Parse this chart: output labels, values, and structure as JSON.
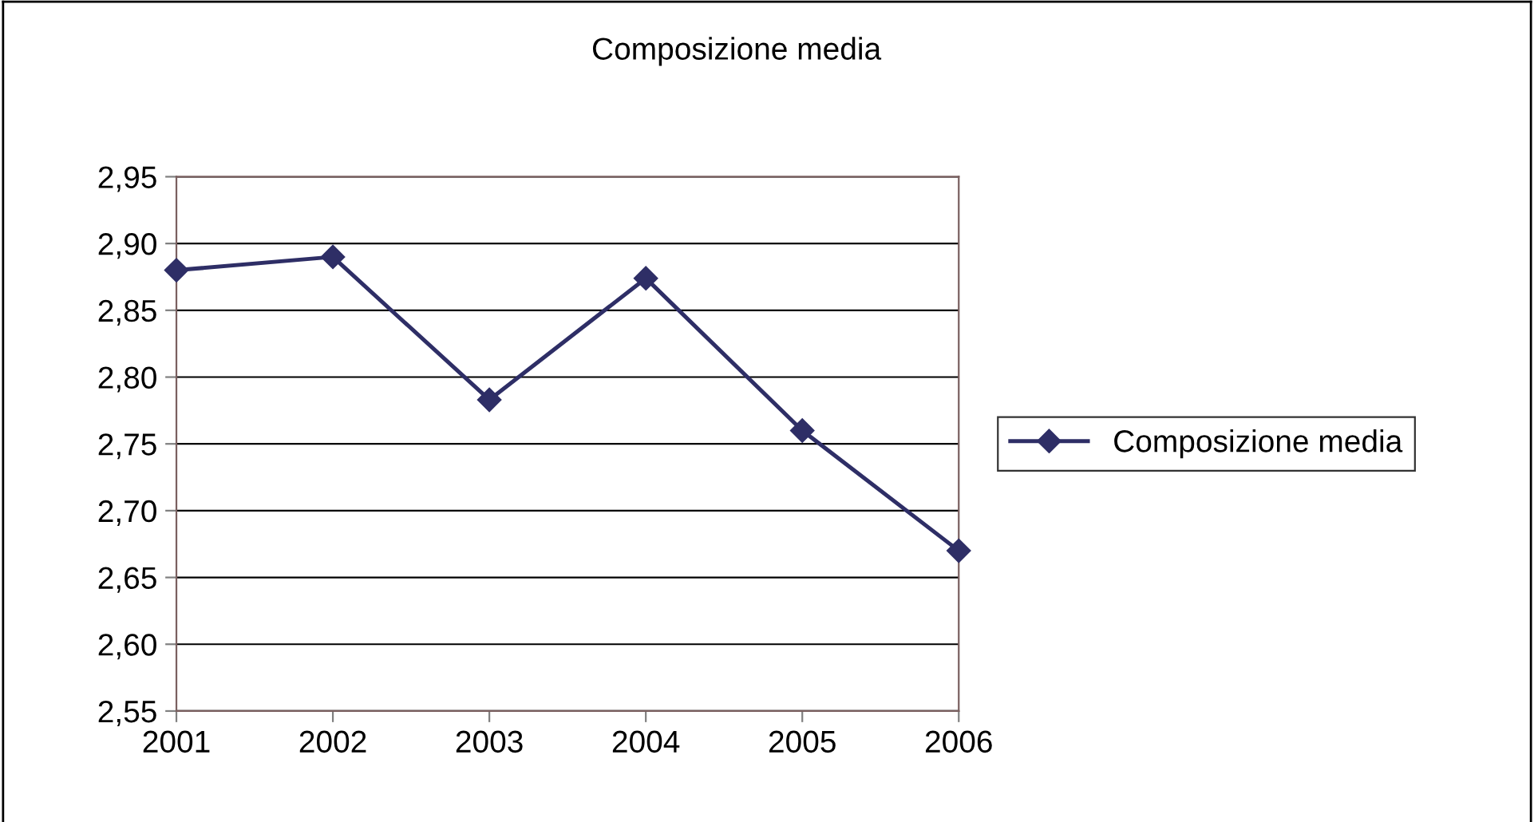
{
  "chart_data": {
    "type": "line",
    "title": "Composizione media",
    "categories": [
      "2001",
      "2002",
      "2003",
      "2004",
      "2005",
      "2006"
    ],
    "series": [
      {
        "name": "Composizione media",
        "color": "#2e2e66",
        "values": [
          2.88,
          2.89,
          2.783,
          2.874,
          2.76,
          2.67
        ]
      }
    ],
    "ylim": [
      2.55,
      2.95
    ],
    "yticks": [
      {
        "value": 2.55,
        "label": "2,55"
      },
      {
        "value": 2.6,
        "label": "2,60"
      },
      {
        "value": 2.65,
        "label": "2,65"
      },
      {
        "value": 2.7,
        "label": "2,70"
      },
      {
        "value": 2.75,
        "label": "2,75"
      },
      {
        "value": 2.8,
        "label": "2,80"
      },
      {
        "value": 2.85,
        "label": "2,85"
      },
      {
        "value": 2.9,
        "label": "2,90"
      },
      {
        "value": 2.95,
        "label": "2,95"
      }
    ],
    "grid": "y",
    "legend": "right",
    "marker": "diamond",
    "line_style": "solid"
  }
}
